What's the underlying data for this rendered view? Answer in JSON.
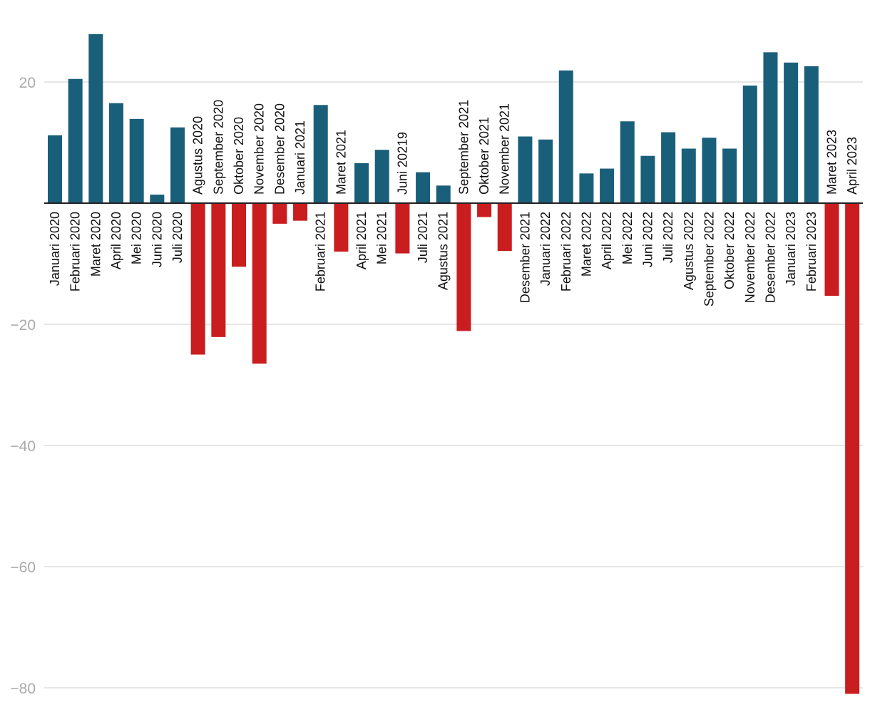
{
  "chart_data": {
    "type": "bar",
    "title": "",
    "xlabel": "",
    "ylabel": "",
    "ylim": [
      -80,
      28
    ],
    "yticks": [
      20,
      -20,
      -40,
      -60,
      -80
    ],
    "grid": true,
    "colors": {
      "positive": "#1a5f7a",
      "negative": "#c91d1f"
    },
    "categories": [
      "Januari 2020",
      "Februari 2020",
      "Maret 2020",
      "April 2020",
      "Mei 2020",
      "Juni 2020",
      "Juli 2020",
      "Agustus 2020",
      "September 2020",
      "Oktober 2020",
      "November 2020",
      "Desember 2020",
      "Januari 2021",
      "Februari 2021",
      "Maret 2021",
      "April 2021",
      "Mei 2021",
      "Juni 20219",
      "Juli 2021",
      "Agustus 2021",
      "September 2021",
      "Oktober 2021",
      "November 2021",
      "Desember 2021",
      "Januari 2022",
      "Februari 2022",
      "Maret 2022",
      "April 2022",
      "Mei 2022",
      "Juni 2022",
      "Juli 2022",
      "Agustus 2022",
      "September 2022",
      "Oktober 2022",
      "November 2022",
      "Desember 2022",
      "Januari 2023",
      "Februari 2023",
      "Maret 2023",
      "April 2023"
    ],
    "values": [
      11.2,
      20.5,
      27.9,
      16.5,
      13.9,
      1.4,
      12.5,
      -25.0,
      -22.1,
      -10.5,
      -26.5,
      -3.4,
      -2.9,
      16.2,
      -8.0,
      6.6,
      8.8,
      -8.3,
      5.1,
      2.9,
      -21.1,
      -2.3,
      -7.9,
      11.0,
      10.5,
      21.9,
      4.9,
      5.7,
      13.5,
      7.8,
      11.7,
      9.0,
      10.8,
      9.0,
      19.4,
      24.9,
      23.2,
      22.6,
      -15.3,
      -81.0
    ]
  }
}
